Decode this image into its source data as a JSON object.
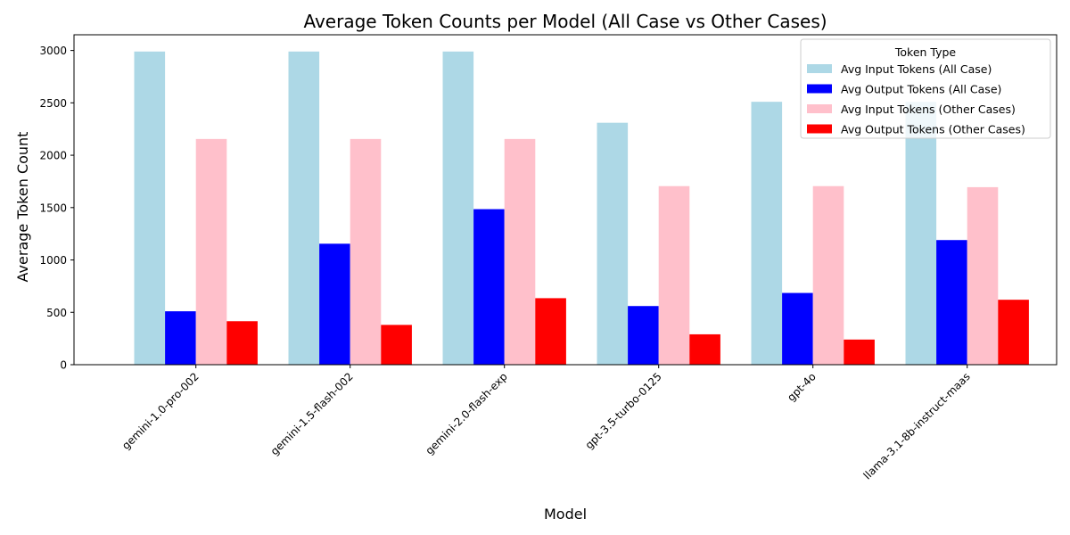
{
  "chart_data": {
    "type": "bar",
    "title": "Average Token Counts per Model (All Case vs Other Cases)",
    "xlabel": "Model",
    "ylabel": "Average Token Count",
    "categories": [
      "gemini-1.0-pro-002",
      "gemini-1.5-flash-002",
      "gemini-2.0-flash-exp",
      "gpt-3.5-turbo-0125",
      "gpt-4o",
      "llama-3.1-8b-instruct-maas"
    ],
    "ylim": [
      0,
      3150
    ],
    "yticks": [
      0,
      500,
      1000,
      1500,
      2000,
      2500,
      3000
    ],
    "ytick_labels": [
      "0",
      "500",
      "1000",
      "1500",
      "2000",
      "2500",
      "3000"
    ],
    "grid": false,
    "legend": {
      "title": "Token Type",
      "position": "top-right"
    },
    "series": [
      {
        "name": "Avg Input Tokens (All Case)",
        "color": "#add8e6",
        "values": [
          2990,
          2990,
          2990,
          2310,
          2510,
          2510
        ]
      },
      {
        "name": "Avg Output Tokens (All Case)",
        "color": "#0000ff",
        "values": [
          510,
          1155,
          1485,
          560,
          685,
          1190
        ]
      },
      {
        "name": "Avg Input Tokens (Other Cases)",
        "color": "#ffc0cb",
        "values": [
          2155,
          2155,
          2155,
          1705,
          1705,
          1695
        ]
      },
      {
        "name": "Avg Output Tokens (Other Cases)",
        "color": "#ff0000",
        "values": [
          415,
          380,
          635,
          290,
          240,
          620
        ]
      }
    ]
  }
}
